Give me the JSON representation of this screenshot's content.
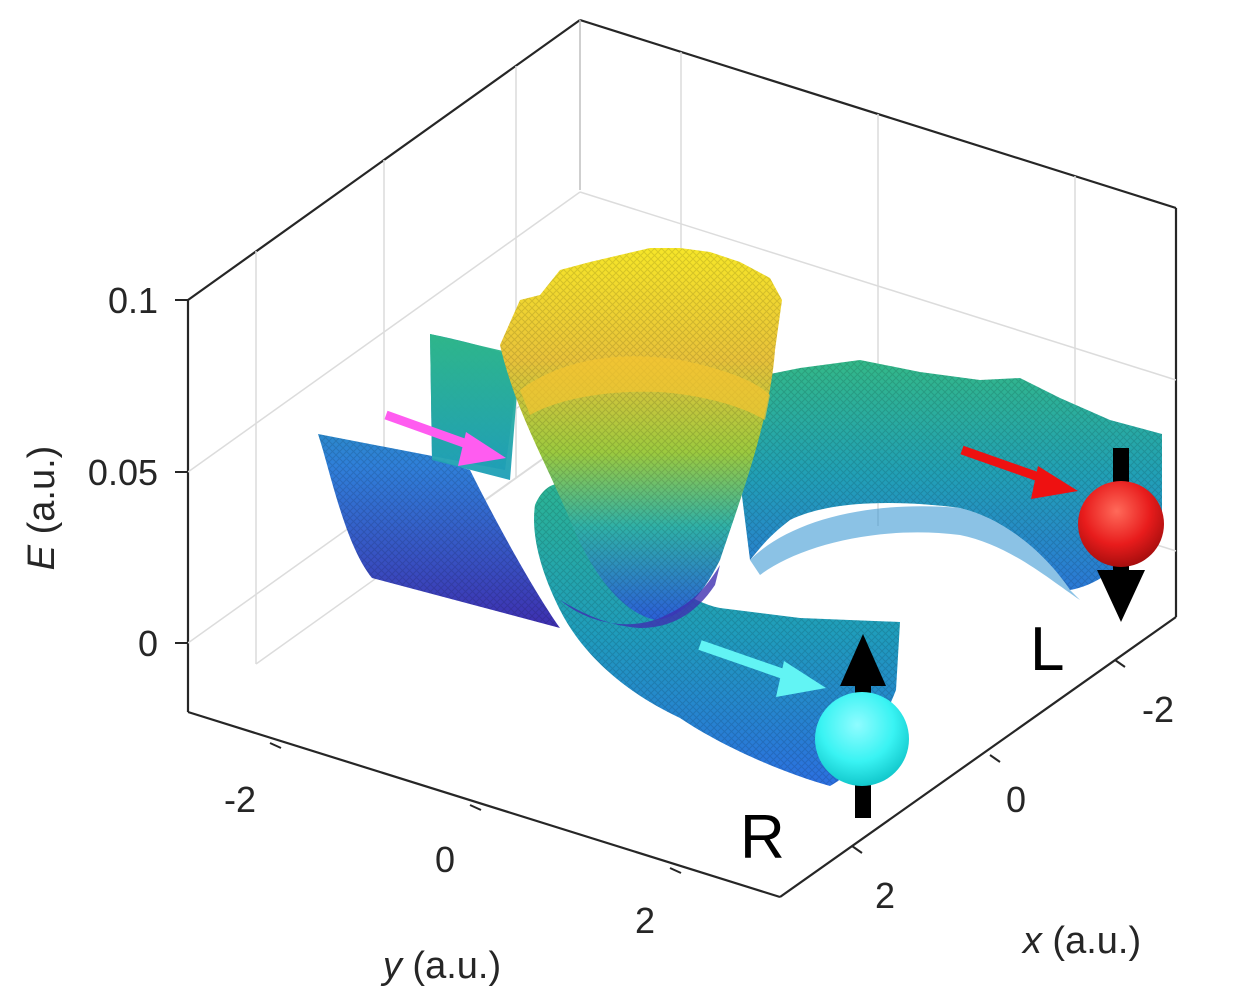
{
  "chart_data": {
    "type": "surface",
    "xlabel_var": "x",
    "xlabel_unit": "(a.u.)",
    "ylabel_var": "y",
    "ylabel_unit": "(a.u.)",
    "zlabel_var": "E",
    "zlabel_unit": "(a.u.)",
    "x_ticks": [
      "-2",
      "0",
      "2"
    ],
    "y_ticks": [
      "-2",
      "0",
      "2"
    ],
    "z_ticks": [
      "0",
      "0.05",
      "0.1"
    ],
    "xlim": [
      -3,
      3
    ],
    "ylim": [
      -3,
      3
    ],
    "zlim": [
      -0.02,
      0.1
    ],
    "grid": true,
    "colormap": [
      "#3e26a8",
      "#2e6ee6",
      "#1fa4c2",
      "#35b779",
      "#9cca3f",
      "#f8c83a",
      "#f9fb0e"
    ],
    "annotations": {
      "label_L": "L",
      "label_R": "R"
    },
    "markers": {
      "L_ball_color": "#e81c1c",
      "R_ball_color": "#39f3f3",
      "magenta_arrow_color": "#ff5cf0",
      "red_arrow_color": "#ee1111",
      "cyan_arrow_color": "#62f4f4",
      "spin_arrow_color": "#000000"
    }
  }
}
